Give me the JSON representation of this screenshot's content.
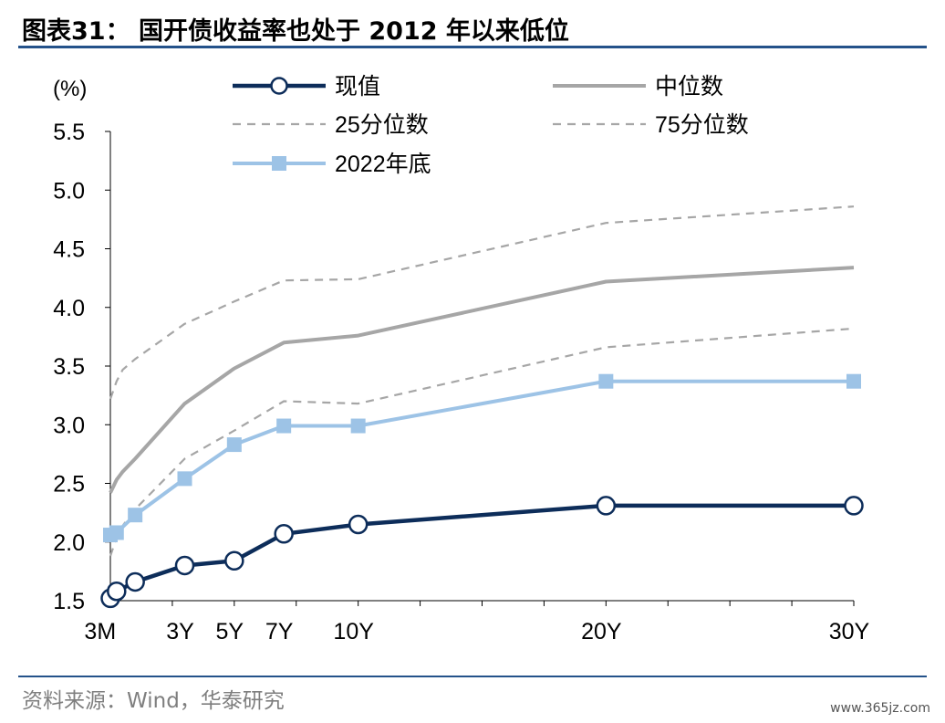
{
  "header": {
    "title": "图表31： 国开债收益率也处于 2012 年以来低位"
  },
  "footer": {
    "source": "资料来源：Wind，华泰研究",
    "watermark": "www.365jz.com"
  },
  "chart_data": {
    "type": "line",
    "ylabel": "(%)",
    "ylim": [
      1.5,
      5.5
    ],
    "yticks": [
      1.5,
      2.0,
      2.5,
      3.0,
      3.5,
      4.0,
      4.5,
      5.0,
      5.5
    ],
    "ytick_labels": [
      "1.5",
      "2.0",
      "2.5",
      "3.0",
      "3.5",
      "4.0",
      "4.5",
      "5.0",
      "5.5"
    ],
    "xlim": [
      0,
      30
    ],
    "xticks": [
      0.25,
      3,
      5,
      7,
      10,
      20,
      30
    ],
    "xtick_labels": [
      "3M",
      "3Y",
      "5Y",
      "7Y",
      "10Y",
      "20Y",
      "30Y"
    ],
    "x_minor_ticks": [
      2.5,
      5,
      7.5,
      10,
      12.5,
      15,
      17.5,
      20,
      22.5,
      25,
      27.5,
      30
    ],
    "x": [
      0,
      0.25,
      0.5,
      1,
      2,
      3,
      5,
      7,
      10,
      15,
      20,
      30
    ],
    "series": [
      {
        "name": "75分位数",
        "color": "#a6a6a6",
        "style": "dashed",
        "marker": "none",
        "x": [
          0,
          0.25,
          0.5,
          1,
          3,
          5,
          7,
          10,
          20,
          30
        ],
        "values": [
          3.22,
          3.37,
          3.47,
          3.56,
          3.86,
          4.05,
          4.23,
          4.24,
          4.72,
          4.86
        ]
      },
      {
        "name": "中位数",
        "color": "#a6a6a6",
        "style": "solid",
        "marker": "none",
        "x": [
          0,
          0.25,
          0.5,
          1,
          3,
          5,
          7,
          10,
          20,
          30
        ],
        "values": [
          2.42,
          2.53,
          2.6,
          2.71,
          3.18,
          3.48,
          3.7,
          3.76,
          4.22,
          4.34
        ]
      },
      {
        "name": "25分位数",
        "color": "#a6a6a6",
        "style": "dashed",
        "marker": "none",
        "x": [
          0,
          0.25,
          0.5,
          1,
          3,
          5,
          7,
          10,
          20,
          30
        ],
        "values": [
          1.88,
          2.04,
          2.14,
          2.28,
          2.71,
          2.95,
          3.2,
          3.18,
          3.66,
          3.82
        ]
      },
      {
        "name": "2022年底",
        "color": "#9dc3e6",
        "style": "solid",
        "marker": "square",
        "x": [
          0,
          0.25,
          1,
          3,
          5,
          7,
          10,
          20,
          30
        ],
        "values": [
          2.06,
          2.08,
          2.23,
          2.54,
          2.83,
          2.99,
          2.99,
          3.37,
          3.37
        ]
      },
      {
        "name": "现值",
        "color": "#0d2d5a",
        "style": "solid",
        "marker": "circle",
        "x": [
          0,
          0.25,
          1,
          3,
          5,
          7,
          10,
          20,
          30
        ],
        "values": [
          1.52,
          1.58,
          1.66,
          1.8,
          1.84,
          2.07,
          2.15,
          2.31,
          2.31
        ]
      }
    ],
    "legend": {
      "placement": "top",
      "entries": [
        "现值",
        "中位数",
        "25分位数",
        "75分位数",
        "2022年底"
      ]
    },
    "grid": false
  }
}
